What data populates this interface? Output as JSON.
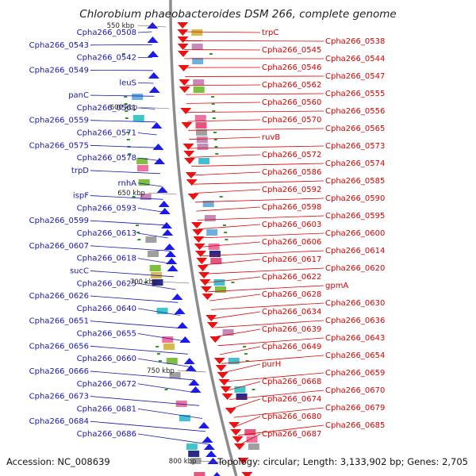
{
  "title": "Chlorobium phaeobacteroides DSM 266, complete genome",
  "footer": {
    "accession": "Accession: NC_008639",
    "summary": "Topology: circular; Length: 3,133,902 bp; Genes: 2,705"
  },
  "scale_marks": [
    "550 kbp",
    "600 kbp",
    "650 kbp",
    "700 kbp",
    "750 kbp",
    "800 kbp"
  ],
  "left_labels": [
    "Cpha266_0508",
    "Cpha266_0543",
    "Cpha266_0542",
    "Cpha266_0549",
    "leuS",
    "panC",
    "Cpha266_0561",
    "Cpha266_0559",
    "Cpha266_0571",
    "Cpha266_0575",
    "Cpha266_0578",
    "trpD",
    "rnhA",
    "ispF",
    "Cpha266_0593",
    "Cpha266_0599",
    "Cpha266_0613",
    "Cpha266_0607",
    "Cpha266_0618",
    "sucC",
    "Cpha266_0625",
    "Cpha266_0626",
    "Cpha266_0640",
    "Cpha266_0651",
    "Cpha266_0655",
    "Cpha266_0656",
    "Cpha266_0660",
    "Cpha266_0666",
    "Cpha266_0672",
    "Cpha266_0673",
    "Cpha266_0681",
    "Cpha266_0684",
    "Cpha266_0686"
  ],
  "right_labels": [
    "trpC",
    "Cpha266_0538",
    "Cpha266_0545",
    "Cpha266_0544",
    "Cpha266_0546",
    "Cpha266_0547",
    "Cpha266_0562",
    "Cpha266_0555",
    "Cpha266_0560",
    "Cpha266_0556",
    "Cpha266_0570",
    "Cpha266_0565",
    "ruvB",
    "Cpha266_0573",
    "Cpha266_0572",
    "Cpha266_0574",
    "Cpha266_0586",
    "Cpha266_0585",
    "Cpha266_0592",
    "Cpha266_0590",
    "Cpha266_0598",
    "Cpha266_0595",
    "Cpha266_0603",
    "Cpha266_0600",
    "Cpha266_0606",
    "Cpha266_0614",
    "Cpha266_0617",
    "Cpha266_0620",
    "Cpha266_0622",
    "gpmA",
    "Cpha266_0628",
    "Cpha266_0630",
    "Cpha266_0634",
    "Cpha266_0636",
    "Cpha266_0639",
    "Cpha266_0643",
    "Cpha266_0649",
    "Cpha266_0654",
    "purH",
    "Cpha266_0659",
    "Cpha266_0668",
    "Cpha266_0670",
    "Cpha266_0674",
    "Cpha266_0679",
    "Cpha266_0680",
    "Cpha266_0685",
    "Cpha266_0687"
  ],
  "colors": {
    "forward": "#1a1aee",
    "reverse": "#ee1111",
    "backbone": "#8c8c8c",
    "left_label": "#1616b4",
    "right_label": "#e00000"
  }
}
